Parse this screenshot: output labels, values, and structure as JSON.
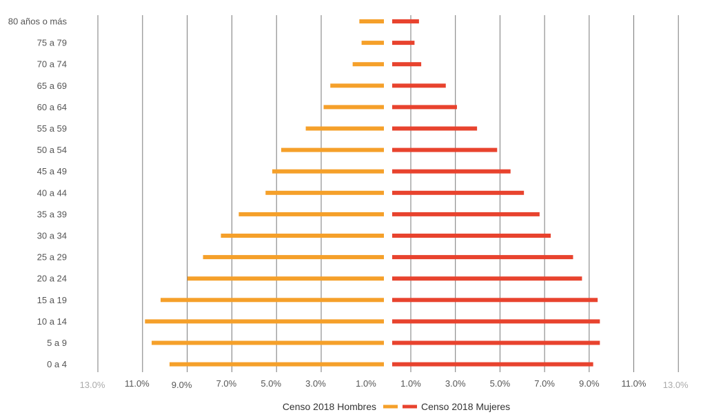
{
  "chart_data": {
    "type": "bar",
    "orientation": "horizontal",
    "subtype": "population-pyramid",
    "title": "",
    "xlabel": "",
    "ylabel": "",
    "xlim": [
      -13,
      13
    ],
    "grid": true,
    "legend_position": "bottom",
    "categories": [
      "80 años o más",
      "75 a 79",
      "70 a 74",
      "65 a 69",
      "60 a 64",
      "55 a 59",
      "50 a 54",
      "45 a 49",
      "40 a 44",
      "35 a 39",
      "30 a 34",
      "25 a 29",
      "20 a 24",
      "15 a 19",
      "10 a 14",
      "5 a 9",
      "0 a 4"
    ],
    "tick_labels": [
      "13.0%",
      "11.0%",
      "9.0%",
      "7.0%",
      "5.0%",
      "3.0%",
      "1.0%",
      "1.0%",
      "3.0%",
      "5.0%",
      "7.0%",
      "9.0%",
      "11.0%",
      "13.0%"
    ],
    "series": [
      {
        "name": "Censo 2018 Hombres",
        "side": "left",
        "color": "#f5a02a",
        "values": [
          1.1,
          1.0,
          1.4,
          2.4,
          2.7,
          3.5,
          4.6,
          5.0,
          5.3,
          6.5,
          7.3,
          8.1,
          8.8,
          10.0,
          10.7,
          10.4,
          9.6
        ]
      },
      {
        "name": "Censo 2018 Mujeres",
        "side": "right",
        "color": "#e8432e",
        "values": [
          1.2,
          1.0,
          1.3,
          2.4,
          2.9,
          3.8,
          4.7,
          5.3,
          5.9,
          6.6,
          7.1,
          8.1,
          8.5,
          9.2,
          9.3,
          9.3,
          9.0
        ]
      }
    ]
  }
}
